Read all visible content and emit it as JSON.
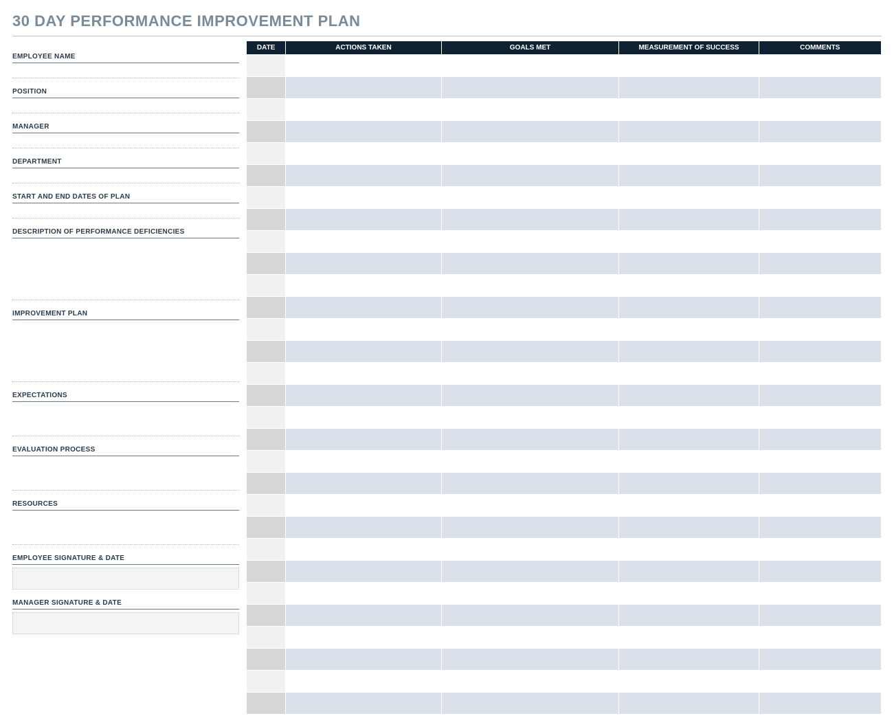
{
  "title": "30 DAY PERFORMANCE IMPROVEMENT PLAN",
  "title_color": "#7b8a99",
  "left_fields": [
    {
      "label": "EMPLOYEE NAME",
      "height": "short"
    },
    {
      "label": "POSITION",
      "height": "short"
    },
    {
      "label": "MANAGER",
      "height": "short"
    },
    {
      "label": "DEPARTMENT",
      "height": "short"
    },
    {
      "label": "START AND END DATES OF PLAN",
      "height": "short"
    },
    {
      "label": "DESCRIPTION OF PERFORMANCE DEFICIENCIES",
      "height": "tall"
    },
    {
      "label": "IMPROVEMENT PLAN",
      "height": "tall"
    },
    {
      "label": "EXPECTATIONS",
      "height": "med"
    },
    {
      "label": "EVALUATION PROCESS",
      "height": "med"
    },
    {
      "label": "RESOURCES",
      "height": "med"
    }
  ],
  "signatures": [
    {
      "label": "EMPLOYEE SIGNATURE & DATE"
    },
    {
      "label": "MANAGER SIGNATURE & DATE"
    }
  ],
  "table": {
    "columns": [
      {
        "label": "DATE",
        "class": "col-date"
      },
      {
        "label": "ACTIONS TAKEN",
        "class": "col-actions"
      },
      {
        "label": "GOALS MET",
        "class": "col-goals"
      },
      {
        "label": "MEASUREMENT OF SUCCESS",
        "class": "col-meas"
      },
      {
        "label": "COMMENTS",
        "class": "col-comm"
      }
    ],
    "row_count": 30,
    "header_bg": "#0f2233",
    "header_fg": "#ffffff",
    "odd_date_bg": "#f0f1f2",
    "odd_rest_bg": "#ffffff",
    "even_date_bg": "#d6d7d8",
    "even_rest_bg": "#dbe1ea",
    "border_color": "#ffffff"
  }
}
